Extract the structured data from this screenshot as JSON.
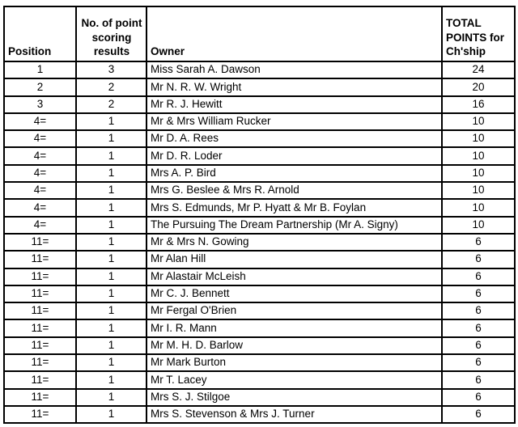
{
  "table": {
    "columns": [
      {
        "key": "position",
        "label": "Position"
      },
      {
        "key": "results",
        "label": "No. of point\nscoring\nresults"
      },
      {
        "key": "owner",
        "label": "Owner"
      },
      {
        "key": "points",
        "label": "TOTAL\nPOINTS for\nCh'ship"
      }
    ],
    "rows": [
      {
        "position": "1",
        "results": "3",
        "owner": "Miss Sarah A. Dawson",
        "points": "24"
      },
      {
        "position": "2",
        "results": "2",
        "owner": "Mr N. R. W. Wright",
        "points": "20"
      },
      {
        "position": "3",
        "results": "2",
        "owner": "Mr R. J. Hewitt",
        "points": "16"
      },
      {
        "position": "4=",
        "results": "1",
        "owner": "Mr & Mrs William Rucker",
        "points": "10"
      },
      {
        "position": "4=",
        "results": "1",
        "owner": "Mr D. A. Rees",
        "points": "10"
      },
      {
        "position": "4=",
        "results": "1",
        "owner": "Mr D. R. Loder",
        "points": "10"
      },
      {
        "position": "4=",
        "results": "1",
        "owner": "Mrs A. P. Bird",
        "points": "10"
      },
      {
        "position": "4=",
        "results": "1",
        "owner": "Mrs G. Beslee & Mrs R. Arnold",
        "points": "10"
      },
      {
        "position": "4=",
        "results": "1",
        "owner": "Mrs S. Edmunds, Mr P. Hyatt & Mr B. Foylan",
        "points": "10"
      },
      {
        "position": "4=",
        "results": "1",
        "owner": "The Pursuing The Dream Partnership (Mr A. Signy)",
        "points": "10"
      },
      {
        "position": "11=",
        "results": "1",
        "owner": "Mr & Mrs N. Gowing",
        "points": "6"
      },
      {
        "position": "11=",
        "results": "1",
        "owner": "Mr Alan Hill",
        "points": "6"
      },
      {
        "position": "11=",
        "results": "1",
        "owner": "Mr Alastair McLeish",
        "points": "6"
      },
      {
        "position": "11=",
        "results": "1",
        "owner": "Mr C. J. Bennett",
        "points": "6"
      },
      {
        "position": "11=",
        "results": "1",
        "owner": "Mr Fergal O'Brien",
        "points": "6"
      },
      {
        "position": "11=",
        "results": "1",
        "owner": "Mr I. R. Mann",
        "points": "6"
      },
      {
        "position": "11=",
        "results": "1",
        "owner": "Mr M. H. D. Barlow",
        "points": "6"
      },
      {
        "position": "11=",
        "results": "1",
        "owner": "Mr Mark Burton",
        "points": "6"
      },
      {
        "position": "11=",
        "results": "1",
        "owner": "Mr T. Lacey",
        "points": "6"
      },
      {
        "position": "11=",
        "results": "1",
        "owner": "Mrs S. J. Stilgoe",
        "points": "6"
      },
      {
        "position": "11=",
        "results": "1",
        "owner": "Mrs S. Stevenson & Mrs J. Turner",
        "points": "6"
      }
    ],
    "style": {
      "border_color": "#000000",
      "text_color": "#000000",
      "background": "#ffffff"
    }
  }
}
